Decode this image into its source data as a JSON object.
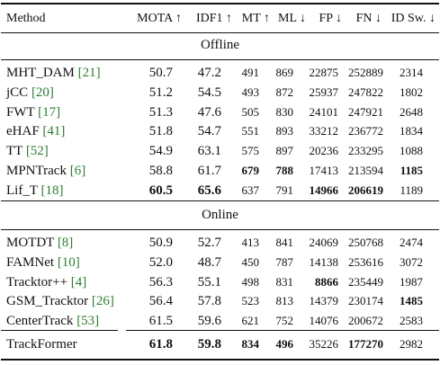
{
  "header": {
    "method": "Method",
    "mota": "MOTA ↑",
    "idf1": "IDF1 ↑",
    "mt": "MT ↑",
    "ml": "ML ↓",
    "fp": "FP ↓",
    "fn": "FN ↓",
    "ids": "ID Sw. ↓"
  },
  "sections": {
    "offline": "Offline",
    "online": "Online"
  },
  "offline_rows": [
    {
      "name": "MHT_DAM",
      "ref": "[21]",
      "mota": "50.7",
      "idf1": "47.2",
      "mt": "491",
      "ml": "869",
      "fp": "22875",
      "fn": "252889",
      "ids": "2314"
    },
    {
      "name": "jCC",
      "ref": "[20]",
      "mota": "51.2",
      "idf1": "54.5",
      "mt": "493",
      "ml": "872",
      "fp": "25937",
      "fn": "247822",
      "ids": "1802"
    },
    {
      "name": "FWT",
      "ref": "[17]",
      "mota": "51.3",
      "idf1": "47.6",
      "mt": "505",
      "ml": "830",
      "fp": "24101",
      "fn": "247921",
      "ids": "2648"
    },
    {
      "name": "eHAF",
      "ref": "[41]",
      "mota": "51.8",
      "idf1": "54.7",
      "mt": "551",
      "ml": "893",
      "fp": "33212",
      "fn": "236772",
      "ids": "1834"
    },
    {
      "name": "TT",
      "ref": "[52]",
      "mota": "54.9",
      "idf1": "63.1",
      "mt": "575",
      "ml": "897",
      "fp": "20236",
      "fn": "233295",
      "ids": "1088"
    },
    {
      "name": "MPNTrack",
      "ref": "[6]",
      "mota": "58.8",
      "idf1": "61.7",
      "mt": "679",
      "ml": "788",
      "fp": "17413",
      "fn": "213594",
      "ids": "1185"
    },
    {
      "name": "Lif_T",
      "ref": "[18]",
      "mota": "60.5",
      "idf1": "65.6",
      "mt": "637",
      "ml": "791",
      "fp": "14966",
      "fn": "206619",
      "ids": "1189"
    }
  ],
  "online_rows": [
    {
      "name": "MOTDT",
      "ref": "[8]",
      "mota": "50.9",
      "idf1": "52.7",
      "mt": "413",
      "ml": "841",
      "fp": "24069",
      "fn": "250768",
      "ids": "2474"
    },
    {
      "name": "FAMNet",
      "ref": "[10]",
      "mota": "52.0",
      "idf1": "48.7",
      "mt": "450",
      "ml": "787",
      "fp": "14138",
      "fn": "253616",
      "ids": "3072"
    },
    {
      "name": "Tracktor++",
      "ref": "[4]",
      "mota": "56.3",
      "idf1": "55.1",
      "mt": "498",
      "ml": "831",
      "fp": "8866",
      "fn": "235449",
      "ids": "1987"
    },
    {
      "name": "GSM_Tracktor",
      "ref": "[26]",
      "mota": "56.4",
      "idf1": "57.8",
      "mt": "523",
      "ml": "813",
      "fp": "14379",
      "fn": "230174",
      "ids": "1485"
    },
    {
      "name": "CenterTrack",
      "ref": "[53]",
      "mota": "61.5",
      "idf1": "59.6",
      "mt": "621",
      "ml": "752",
      "fp": "14076",
      "fn": "200672",
      "ids": "2583"
    }
  ],
  "final_row": {
    "name": "TrackFormer",
    "ref": "",
    "mota": "61.8",
    "idf1": "59.8",
    "mt": "834",
    "ml": "496",
    "fp": "35226",
    "fn": "177270",
    "ids": "2982"
  }
}
